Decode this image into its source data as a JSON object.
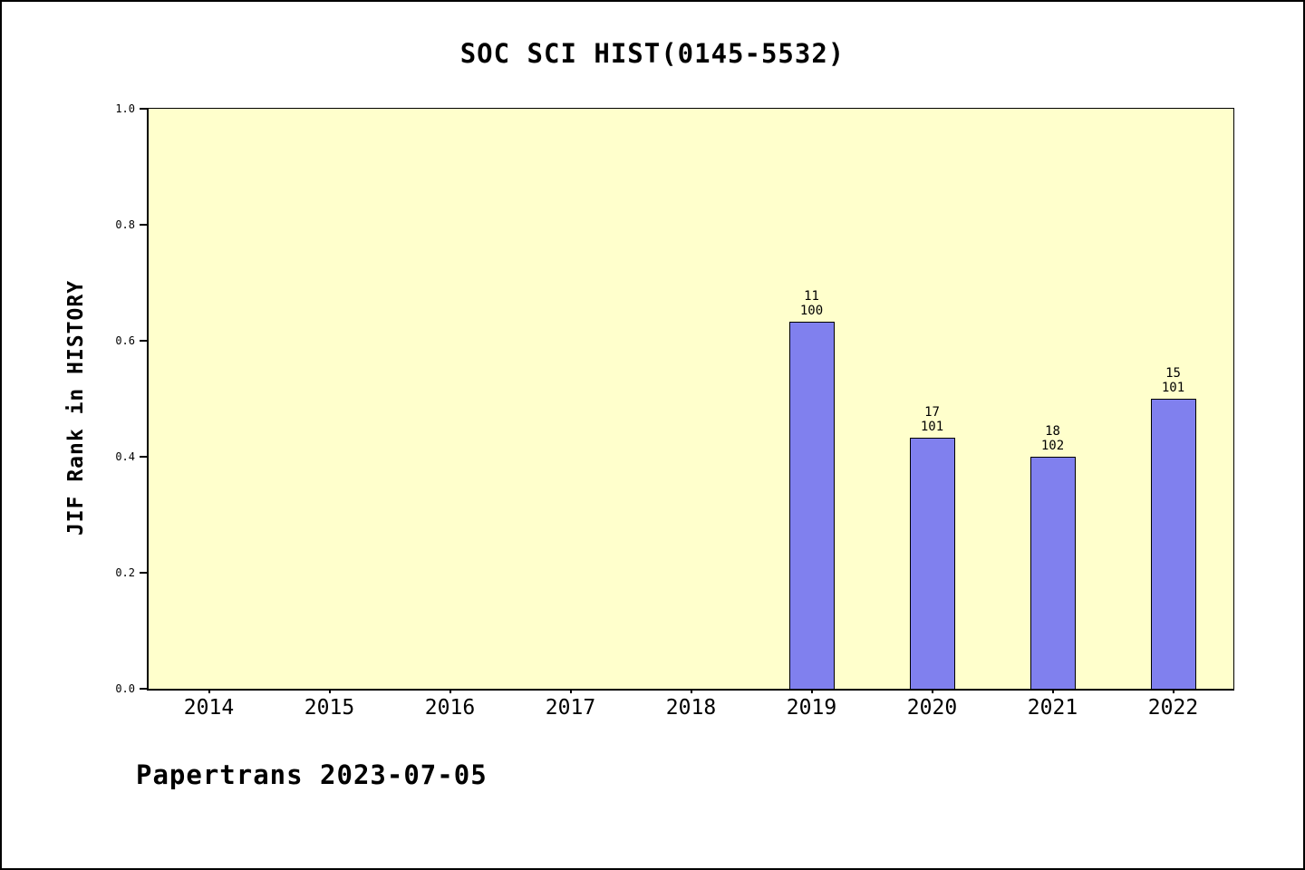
{
  "page": {
    "footer": "Papertrans 2023-07-05"
  },
  "colors": {
    "bar_fill": "#8080EE",
    "bar_border": "#000000",
    "plot_background": "#FFFFCC",
    "page_background": "#FFFFFF",
    "text": "#000000"
  },
  "chart_data": {
    "type": "bar",
    "title": "SOC SCI HIST(0145-5532)",
    "xlabel": "",
    "ylabel": "JIF Rank in HISTORY",
    "categories": [
      "2014",
      "2015",
      "2016",
      "2017",
      "2018",
      "2019",
      "2020",
      "2021",
      "2022"
    ],
    "values": [
      null,
      null,
      null,
      null,
      null,
      0.633,
      0.433,
      0.4,
      0.5
    ],
    "annotations": [
      {
        "category": "2019",
        "rank": "11",
        "total": "100"
      },
      {
        "category": "2020",
        "rank": "17",
        "total": "101"
      },
      {
        "category": "2021",
        "rank": "18",
        "total": "102"
      },
      {
        "category": "2022",
        "rank": "15",
        "total": "101"
      }
    ],
    "ylim": [
      0.0,
      1.0
    ],
    "yticks": [
      "0.0",
      "0.2",
      "0.4",
      "0.6",
      "0.8",
      "1.0"
    ],
    "grid": false,
    "legend": "none"
  }
}
